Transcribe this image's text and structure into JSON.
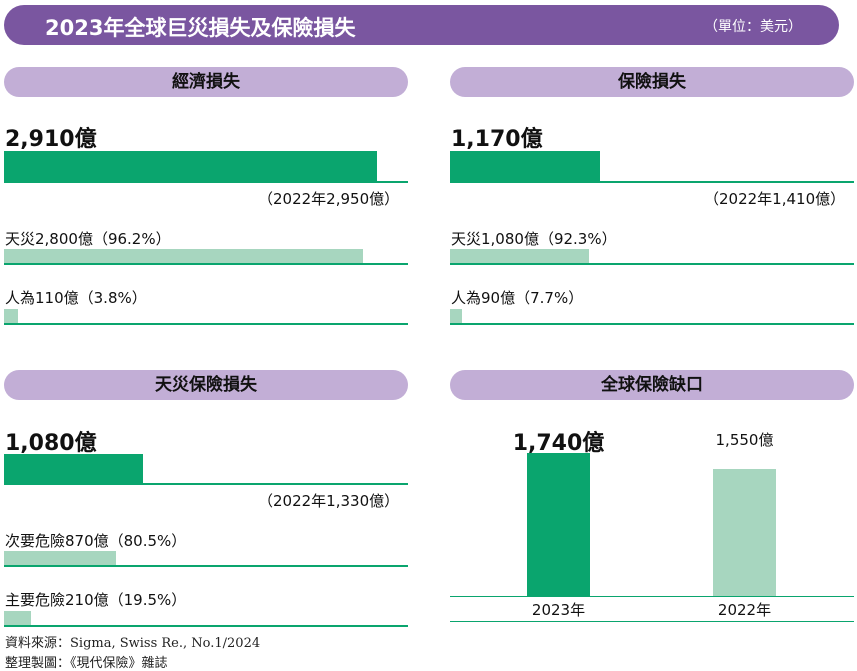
{
  "header": {
    "title": "2023年全球巨災損失及保險損失",
    "unit": "（單位：美元）"
  },
  "colors": {
    "banner": "#7a56a0",
    "pill": "#c2aed6",
    "dark_green": "#0aa56e",
    "light_green": "#a7d6bf"
  },
  "chart_data": [
    {
      "type": "bar",
      "title": "經濟損失",
      "total": {
        "label": "2,910億",
        "value": 2910,
        "prev_label": "（2022年2,950億）"
      },
      "breakdown": [
        {
          "label": "天災2,800億（96.2%）",
          "value": 2800
        },
        {
          "label": "人為110億（3.8%）",
          "value": 110
        }
      ]
    },
    {
      "type": "bar",
      "title": "保險損失",
      "total": {
        "label": "1,170億",
        "value": 1170,
        "prev_label": "（2022年1,410億）"
      },
      "breakdown": [
        {
          "label": "天災1,080億（92.3%）",
          "value": 1080
        },
        {
          "label": "人為90億（7.7%）",
          "value": 90
        }
      ]
    },
    {
      "type": "bar",
      "title": "天災保險損失",
      "total": {
        "label": "1,080億",
        "value": 1080,
        "prev_label": "（2022年1,330億）"
      },
      "breakdown": [
        {
          "label": "次要危險870億（80.5%）",
          "value": 870
        },
        {
          "label": "主要危險210億（19.5%）",
          "value": 210
        }
      ]
    },
    {
      "type": "bar",
      "title": "全球保險缺口",
      "categories": [
        "2023年",
        "2022年"
      ],
      "values": [
        1740,
        1550
      ],
      "value_labels": [
        "1,740億",
        "1,550億"
      ]
    }
  ],
  "footer": {
    "source": "資料來源：Sigma, Swiss Re., No.1/2024",
    "made_by": "整理製圖：《現代保險》雜誌"
  }
}
